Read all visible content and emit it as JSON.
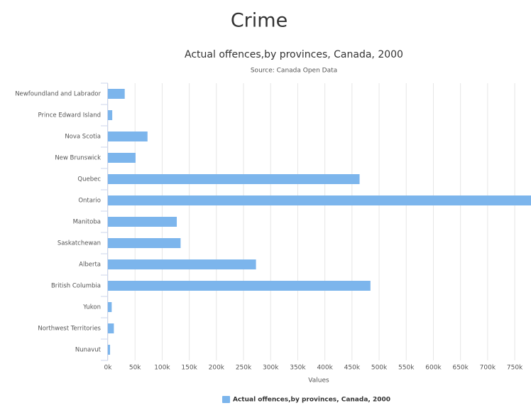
{
  "page_title": "Crime",
  "chart_data": {
    "type": "bar",
    "orientation": "horizontal",
    "title": "Actual offences,by provinces, Canada, 2000",
    "subtitle": "Source: Canada Open Data",
    "x_label": "Values",
    "categories": [
      "Newfoundland and Labrador",
      "Prince Edward Island",
      "Nova Scotia",
      "New Brunswick",
      "Quebec",
      "Ontario",
      "Manitoba",
      "Saskatchewan",
      "Alberta",
      "British Columbia",
      "Yukon",
      "Northwest Territories",
      "Nunavut"
    ],
    "series": [
      {
        "name": "Actual offences,by provinces, Canada, 2000",
        "color": "#7cb5ec",
        "values": [
          31000,
          8000,
          73000,
          51000,
          464000,
          790000,
          127000,
          134000,
          273000,
          484000,
          7000,
          11000,
          4000
        ]
      }
    ],
    "xlim": [
      0,
      780000
    ],
    "xticks": [
      {
        "value": 0,
        "label": "0k"
      },
      {
        "value": 50000,
        "label": "50k"
      },
      {
        "value": 100000,
        "label": "100k"
      },
      {
        "value": 150000,
        "label": "150k"
      },
      {
        "value": 200000,
        "label": "200k"
      },
      {
        "value": 250000,
        "label": "250k"
      },
      {
        "value": 300000,
        "label": "300k"
      },
      {
        "value": 350000,
        "label": "350k"
      },
      {
        "value": 400000,
        "label": "400k"
      },
      {
        "value": 450000,
        "label": "450k"
      },
      {
        "value": 500000,
        "label": "500k"
      },
      {
        "value": 550000,
        "label": "550k"
      },
      {
        "value": 600000,
        "label": "600k"
      },
      {
        "value": 650000,
        "label": "650k"
      },
      {
        "value": 700000,
        "label": "700k"
      },
      {
        "value": 750000,
        "label": "750k"
      }
    ],
    "grid": true
  }
}
